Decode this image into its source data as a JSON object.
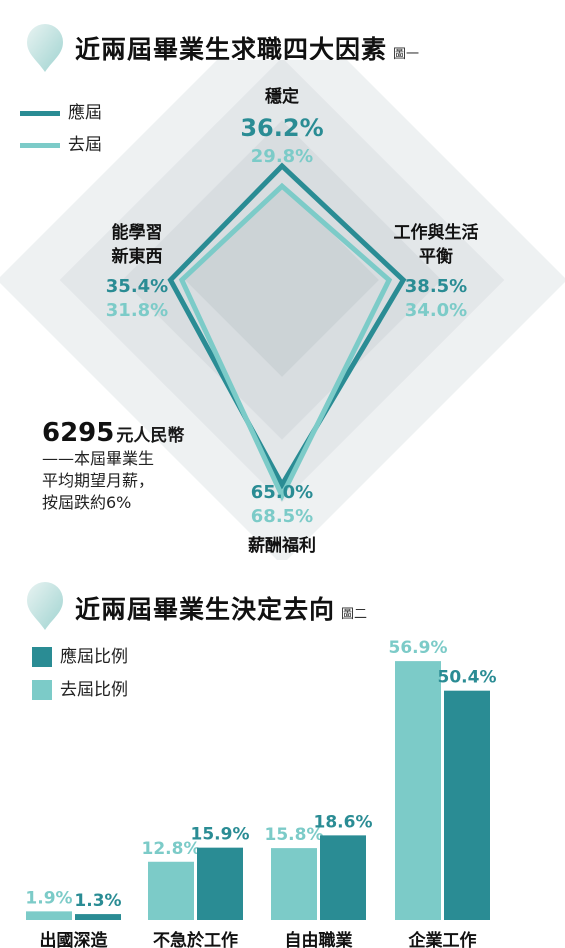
{
  "fig1": {
    "title": "近兩屆畢業生求職四大因素",
    "fig_label": "圖一",
    "legend_now": "應屆",
    "legend_prev": "去屆",
    "salary_amount": "6295",
    "salary_unit": "元人民幣",
    "salary_note_1": "——本屆畢業生",
    "salary_note_2": "平均期望月薪，",
    "salary_note_3": "按屆跌約6%"
  },
  "fig2": {
    "title": "近兩屆畢業生決定去向",
    "fig_label": "圖二",
    "legend_now": "應屆比例",
    "legend_prev": "去屆比例"
  },
  "colors": {
    "now": "#2a8c94",
    "prev": "#7ccbc8",
    "diamond": "#e6eaec"
  },
  "icons": {
    "title_marker": "droplet-icon"
  },
  "chart_data": [
    {
      "type": "radar",
      "categories": [
        "穩定",
        "工作與生活平衡",
        "薪酬福利",
        "能學習新東西"
      ],
      "category_lines": [
        [
          "穩定"
        ],
        [
          "工作與生活",
          "平衡"
        ],
        [
          "薪酬福利"
        ],
        [
          "能學習",
          "新東西"
        ]
      ],
      "series": [
        {
          "name": "應屆",
          "values": [
            36.2,
            38.5,
            65.0,
            35.4
          ],
          "labels": [
            "36.2%",
            "38.5%",
            "65.0%",
            "35.4%"
          ]
        },
        {
          "name": "去屆",
          "values": [
            29.8,
            34.0,
            68.5,
            31.8
          ],
          "labels": [
            "29.8%",
            "34.0%",
            "68.5%",
            "31.8%"
          ]
        }
      ],
      "range": [
        0,
        70
      ]
    },
    {
      "type": "bar",
      "categories": [
        "出國深造",
        "不急於工作",
        "自由職業",
        "企業工作"
      ],
      "series": [
        {
          "name": "去屆比例",
          "values": [
            1.9,
            12.8,
            15.8,
            56.9
          ],
          "labels": [
            "1.9%",
            "12.8%",
            "15.8%",
            "56.9%"
          ]
        },
        {
          "name": "應屆比例",
          "values": [
            1.3,
            15.9,
            18.6,
            50.4
          ],
          "labels": [
            "1.3%",
            "15.9%",
            "18.6%",
            "50.4%"
          ]
        }
      ],
      "ylim": [
        0,
        60
      ]
    }
  ]
}
